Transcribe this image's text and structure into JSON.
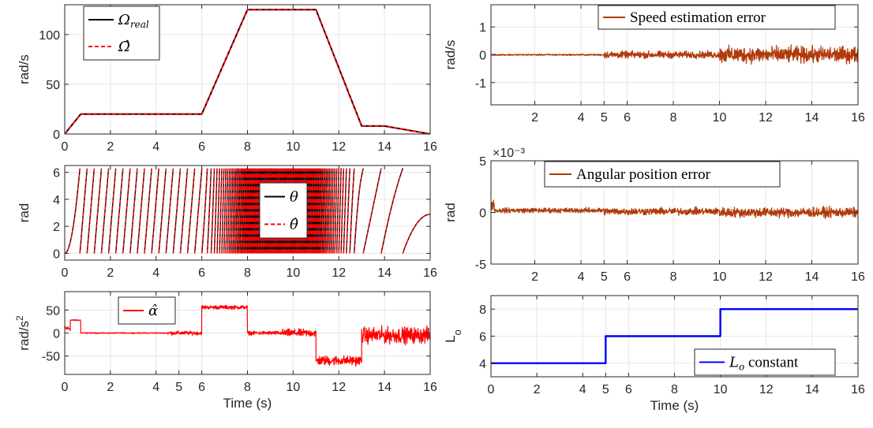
{
  "chart_data": [
    {
      "id": "speed",
      "type": "line",
      "ylabel": "rad/s",
      "xlabel": "",
      "xlim": [
        0,
        16
      ],
      "ylim": [
        0,
        130
      ],
      "xticks": [
        "0",
        "2",
        "4",
        "6",
        "8",
        "10",
        "12",
        "14",
        "16"
      ],
      "yticks": [
        "0",
        "50",
        "100"
      ],
      "ytick_values": [
        0,
        50,
        100
      ],
      "xtick_values": [
        0,
        2,
        4,
        6,
        8,
        10,
        12,
        14,
        16
      ],
      "legend": {
        "placement": "top-left",
        "entries": [
          {
            "main": "Ω",
            "sub": "real",
            "color": "#000000",
            "style": "solid"
          },
          {
            "main": "Ω̂",
            "sub": "",
            "color": "#ff0000",
            "style": "dashed"
          }
        ]
      },
      "series": [
        {
          "name": "Ω_real",
          "color": "#000000",
          "style": "solid",
          "x": [
            0,
            0.7,
            6,
            8,
            11,
            13,
            14,
            16
          ],
          "y": [
            0,
            20,
            20,
            125,
            125,
            8,
            8,
            0
          ]
        },
        {
          "name": "Ω̂",
          "color": "#ff0000",
          "style": "dashed",
          "x": [
            0,
            0.7,
            6,
            8,
            11,
            13,
            14,
            16
          ],
          "y": [
            0,
            20,
            20,
            125,
            125,
            8,
            8,
            0
          ]
        }
      ]
    },
    {
      "id": "position",
      "type": "line",
      "ylabel": "rad",
      "xlabel": "",
      "xlim": [
        0,
        16
      ],
      "ylim": [
        -0.5,
        6.5
      ],
      "xticks": [
        "0",
        "2",
        "4",
        "6",
        "8",
        "10",
        "12",
        "14",
        "16"
      ],
      "yticks": [
        "0",
        "2",
        "4",
        "6"
      ],
      "ytick_values": [
        0,
        2,
        4,
        6
      ],
      "xtick_values": [
        0,
        2,
        4,
        6,
        8,
        10,
        12,
        14,
        16
      ],
      "legend": {
        "placement": "center-right",
        "entries": [
          {
            "main": "θ",
            "sub": "",
            "color": "#000000",
            "style": "solid"
          },
          {
            "main": "θ̂",
            "sub": "",
            "color": "#ff0000",
            "style": "dashed"
          }
        ]
      },
      "note": "sawtooth wrapped angle between 0 and 2π driven by the speed profile"
    },
    {
      "id": "accel",
      "type": "line",
      "ylabel": "rad/s²",
      "xlabel": "Time (s)",
      "xlim": [
        0,
        16
      ],
      "ylim": [
        -90,
        90
      ],
      "xticks": [
        "0",
        "2",
        "4",
        "5",
        "6",
        "8",
        "10",
        "12",
        "14",
        "16"
      ],
      "xtick_values": [
        0,
        2,
        4,
        5,
        6,
        8,
        10,
        12,
        14,
        16
      ],
      "yticks": [
        "-50",
        "0",
        "50"
      ],
      "ytick_values": [
        -50,
        0,
        50
      ],
      "legend": {
        "placement": "top-left",
        "entries": [
          {
            "main": "α̂",
            "sub": "",
            "color": "#ff0000",
            "style": "solid"
          }
        ]
      },
      "series": [
        {
          "name": "α̂",
          "color": "#ff0000",
          "style": "solid",
          "segments": [
            {
              "from": 0,
              "to": 0.25,
              "mean": 10,
              "noise": 8
            },
            {
              "from": 0.25,
              "to": 0.7,
              "mean": 28,
              "noise": 2
            },
            {
              "from": 0.7,
              "to": 4.5,
              "mean": 0,
              "noise": 1.5
            },
            {
              "from": 4.5,
              "to": 6,
              "mean": 0,
              "noise": 6
            },
            {
              "from": 6,
              "to": 8,
              "mean": 56,
              "noise": 6
            },
            {
              "from": 8,
              "to": 9.5,
              "mean": 0,
              "noise": 6
            },
            {
              "from": 9.5,
              "to": 11,
              "mean": 0,
              "noise": 12
            },
            {
              "from": 11,
              "to": 13,
              "mean": -60,
              "noise": 15
            },
            {
              "from": 13,
              "to": 16,
              "mean": -5,
              "noise": 25
            }
          ]
        }
      ]
    },
    {
      "id": "speed_error",
      "type": "line",
      "ylabel": "rad/s",
      "xlabel": "",
      "xlim": [
        0.1,
        16
      ],
      "ylim": [
        -1.8,
        1.8
      ],
      "xticks": [
        "2",
        "4",
        "5",
        "6",
        "8",
        "10",
        "12",
        "14",
        "16"
      ],
      "xtick_values": [
        2,
        4,
        5,
        6,
        8,
        10,
        12,
        14,
        16
      ],
      "yticks": [
        "-1",
        "0",
        "1"
      ],
      "ytick_values": [
        -1,
        0,
        1
      ],
      "legend": {
        "placement": "top-right",
        "entries": [
          {
            "main": "Speed estimation error",
            "sub": "",
            "color": "#b03a0a",
            "style": "solid"
          }
        ]
      },
      "series": [
        {
          "name": "Speed estimation error",
          "color": "#b03a0a",
          "style": "solid",
          "segments": [
            {
              "from": 0.1,
              "to": 5,
              "mean": 0,
              "noise": 0.04
            },
            {
              "from": 5,
              "to": 10,
              "mean": 0,
              "noise": 0.18
            },
            {
              "from": 10,
              "to": 16,
              "mean": 0,
              "noise": 0.42
            }
          ]
        }
      ]
    },
    {
      "id": "position_error",
      "type": "line",
      "ylabel": "rad",
      "xlabel": "",
      "xlim": [
        0.1,
        16
      ],
      "ylim": [
        -5,
        5
      ],
      "exponent": "×10⁻³",
      "xticks": [
        "2",
        "4",
        "5",
        "6",
        "8",
        "10",
        "12",
        "14",
        "16"
      ],
      "xtick_values": [
        2,
        4,
        5,
        6,
        8,
        10,
        12,
        14,
        16
      ],
      "yticks": [
        "-5",
        "0",
        "5"
      ],
      "ytick_values": [
        -5,
        0,
        5
      ],
      "legend": {
        "placement": "top-right",
        "entries": [
          {
            "main": "Angular position error",
            "sub": "",
            "color": "#b03a0a",
            "style": "solid"
          }
        ]
      },
      "series": [
        {
          "name": "Angular position error",
          "color": "#b03a0a",
          "style": "solid",
          "segments": [
            {
              "from": 0.1,
              "to": 0.25,
              "mean": 0.8,
              "noise": 0.8
            },
            {
              "from": 0.25,
              "to": 5,
              "mean": 0.2,
              "noise": 0.35
            },
            {
              "from": 5,
              "to": 10,
              "mean": 0.1,
              "noise": 0.5
            },
            {
              "from": 10,
              "to": 16,
              "mean": 0,
              "noise": 0.7
            }
          ]
        }
      ]
    },
    {
      "id": "lo",
      "type": "line",
      "ylabel": "Lo",
      "xlabel": "Time (s)",
      "xlim": [
        0,
        16
      ],
      "ylim": [
        3,
        9
      ],
      "xticks": [
        "0",
        "2",
        "4",
        "5",
        "6",
        "8",
        "10",
        "12",
        "14",
        "16"
      ],
      "xtick_values": [
        0,
        2,
        4,
        5,
        6,
        8,
        10,
        12,
        14,
        16
      ],
      "yticks": [
        "4",
        "6",
        "8"
      ],
      "ytick_values": [
        4,
        6,
        8
      ],
      "legend": {
        "placement": "bottom-right",
        "entries": [
          {
            "main": "L",
            "sub": "o",
            "suffix": " constant",
            "color": "#0000ff",
            "style": "solid"
          }
        ]
      },
      "series": [
        {
          "name": "L_o constant",
          "color": "#0000ff",
          "style": "solid",
          "x": [
            0,
            5,
            5,
            10,
            10,
            16
          ],
          "y": [
            4,
            4,
            6,
            6,
            8,
            8
          ]
        }
      ]
    }
  ]
}
